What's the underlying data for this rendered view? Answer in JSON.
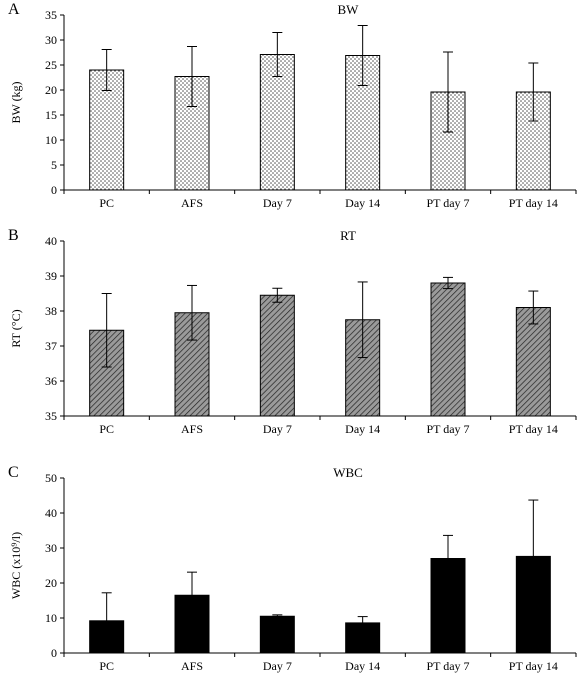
{
  "chart_data": [
    {
      "type": "bar",
      "panel_label": "A",
      "title": "BW",
      "ylabel": "BW (kg)",
      "categories": [
        "PC",
        "AFS",
        "Day 7",
        "Day 14",
        "PT day 7",
        "PT day 14"
      ],
      "values": [
        24.0,
        22.7,
        27.1,
        26.9,
        19.6,
        19.6
      ],
      "errors": [
        4.1,
        6.0,
        4.4,
        6.0,
        8.0,
        5.8
      ],
      "ylim": [
        0,
        35
      ],
      "yticks": [
        "0",
        "5",
        "10",
        "15",
        "20",
        "25",
        "30",
        "35"
      ],
      "fill": "dotted",
      "grid": false,
      "legend": "none"
    },
    {
      "type": "bar",
      "panel_label": "B",
      "title": "RT",
      "ylabel": "RT (°C)",
      "categories": [
        "PC",
        "AFS",
        "Day 7",
        "Day 14",
        "PT day 7",
        "PT day 14"
      ],
      "values": [
        37.45,
        37.95,
        38.45,
        37.75,
        38.8,
        38.1
      ],
      "errors": [
        1.05,
        0.78,
        0.2,
        1.08,
        0.16,
        0.47
      ],
      "ylim": [
        35,
        40
      ],
      "yticks": [
        "35",
        "36",
        "37",
        "38",
        "39",
        "40"
      ],
      "fill": "hatched",
      "grid": false,
      "legend": "none"
    },
    {
      "type": "bar",
      "panel_label": "C",
      "title": "WBC",
      "ylabel": "WBC (x10⁹/l)",
      "categories": [
        "PC",
        "AFS",
        "Day 7",
        "Day 14",
        "PT day 7",
        "PT day 14"
      ],
      "values": [
        9.2,
        16.5,
        10.5,
        8.6,
        27.0,
        27.6
      ],
      "errors": [
        8.0,
        6.6,
        0.4,
        1.8,
        6.6,
        16.1
      ],
      "ylim": [
        0,
        50
      ],
      "yticks": [
        "0",
        "10",
        "20",
        "30",
        "40",
        "50"
      ],
      "fill": "solid",
      "grid": false,
      "legend": "none"
    }
  ]
}
